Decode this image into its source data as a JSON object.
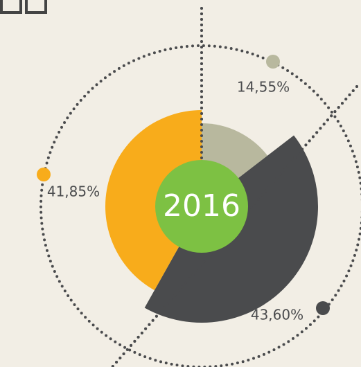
{
  "chart_data": {
    "type": "pie",
    "center_label": "2016",
    "values": [
      14.55,
      43.6,
      41.85
    ],
    "value_labels": [
      "14,55%",
      "43,60%",
      "41,85%"
    ],
    "colors": [
      "#b8b89e",
      "#4a4b4d",
      "#f8ac1b"
    ],
    "center_color": "#7dc143"
  }
}
